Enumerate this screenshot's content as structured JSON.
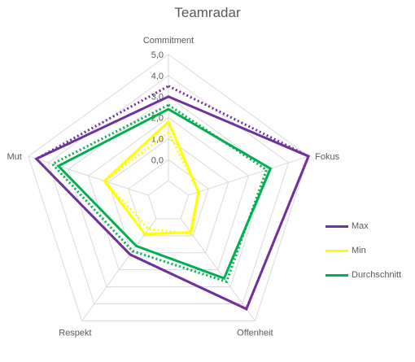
{
  "chart_data": {
    "type": "radar",
    "title": "Teamradar",
    "axes": [
      "Commitment",
      "Fokus",
      "Offenheit",
      "Respekt",
      "Mut"
    ],
    "rmin": -2,
    "rmax": 5,
    "tick_values": [
      0,
      1,
      2,
      3,
      4,
      5
    ],
    "tick_labels": [
      "0,0",
      "1,0",
      "2,0",
      "3,0",
      "4,0",
      "5,0"
    ],
    "gridlines": true,
    "legend_position": "right",
    "series": [
      {
        "name": "Max",
        "color": "#7030A0",
        "style": "solid",
        "values": [
          3.0,
          5.0,
          4.3,
          1.1,
          4.6
        ]
      },
      {
        "name": "Min",
        "color": "#FFFF00",
        "style": "solid",
        "values": [
          1.8,
          -0.5,
          -0.2,
          -0.1,
          1.2
        ]
      },
      {
        "name": "Durchschnitt",
        "color": "#00B050",
        "style": "solid",
        "values": [
          2.4,
          3.1,
          2.5,
          0.6,
          3.5
        ]
      },
      {
        "name": "",
        "color": "#7030A0",
        "style": "dotted",
        "values": [
          3.5,
          5.0,
          4.3,
          1.1,
          4.6
        ]
      },
      {
        "name": "",
        "color": "#FFFF00",
        "style": "dotted",
        "values": [
          1.3,
          -0.5,
          -0.1,
          -0.4,
          1.2
        ]
      },
      {
        "name": "",
        "color": "#00B050",
        "style": "dotted",
        "values": [
          2.6,
          2.9,
          2.7,
          0.9,
          3.8
        ]
      }
    ]
  }
}
